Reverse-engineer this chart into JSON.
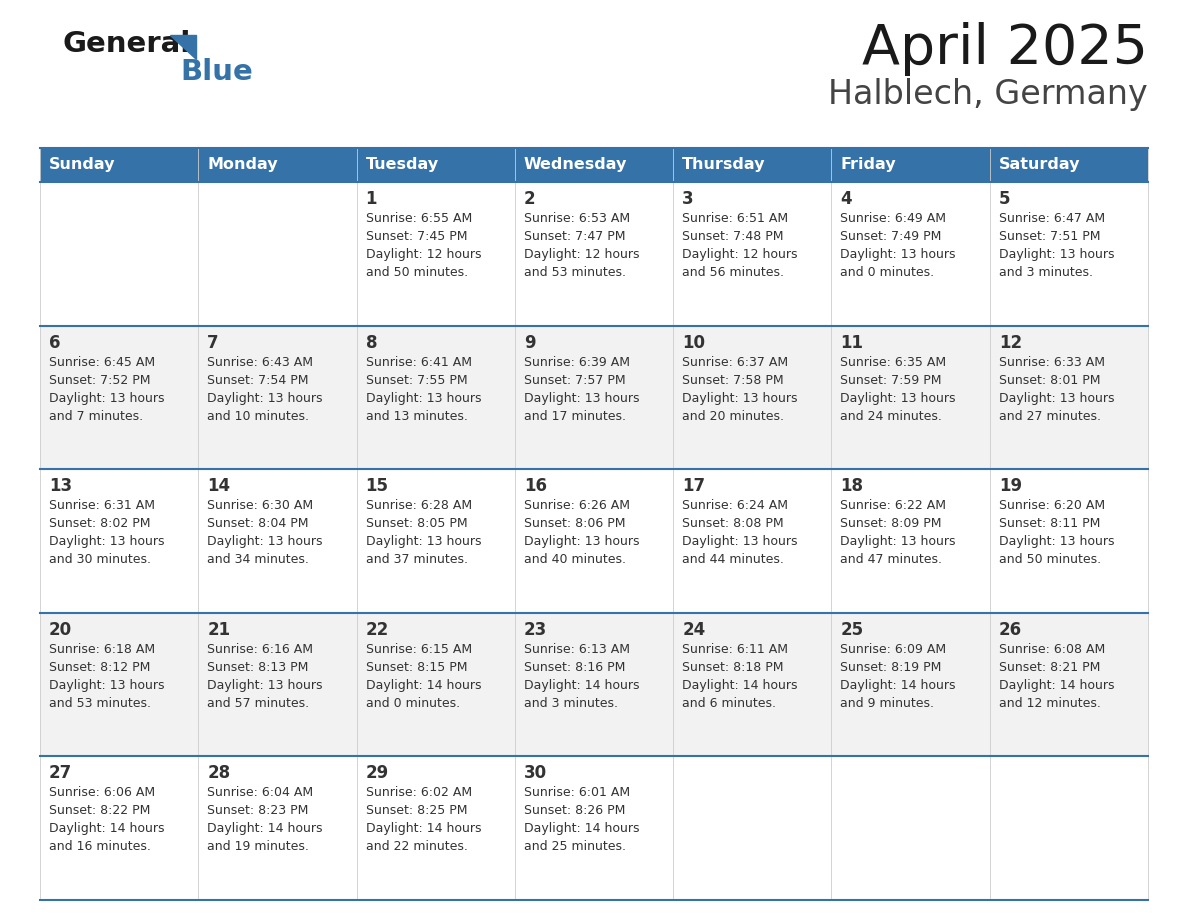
{
  "title": "April 2025",
  "subtitle": "Halblech, Germany",
  "header_color": "#3572a8",
  "header_text_color": "#ffffff",
  "day_names": [
    "Sunday",
    "Monday",
    "Tuesday",
    "Wednesday",
    "Thursday",
    "Friday",
    "Saturday"
  ],
  "bg_color": "#ffffff",
  "row_alt_color": "#f2f2f2",
  "border_color": "#3572a8",
  "cell_border_color": "#cccccc",
  "text_color": "#333333",
  "days": [
    {
      "col": 0,
      "row": 0,
      "num": "",
      "sunrise": "",
      "sunset": "",
      "daylight": ""
    },
    {
      "col": 1,
      "row": 0,
      "num": "",
      "sunrise": "",
      "sunset": "",
      "daylight": ""
    },
    {
      "col": 2,
      "row": 0,
      "num": "1",
      "sunrise": "6:55 AM",
      "sunset": "7:45 PM",
      "daylight": "12 hours\nand 50 minutes."
    },
    {
      "col": 3,
      "row": 0,
      "num": "2",
      "sunrise": "6:53 AM",
      "sunset": "7:47 PM",
      "daylight": "12 hours\nand 53 minutes."
    },
    {
      "col": 4,
      "row": 0,
      "num": "3",
      "sunrise": "6:51 AM",
      "sunset": "7:48 PM",
      "daylight": "12 hours\nand 56 minutes."
    },
    {
      "col": 5,
      "row": 0,
      "num": "4",
      "sunrise": "6:49 AM",
      "sunset": "7:49 PM",
      "daylight": "13 hours\nand 0 minutes."
    },
    {
      "col": 6,
      "row": 0,
      "num": "5",
      "sunrise": "6:47 AM",
      "sunset": "7:51 PM",
      "daylight": "13 hours\nand 3 minutes."
    },
    {
      "col": 0,
      "row": 1,
      "num": "6",
      "sunrise": "6:45 AM",
      "sunset": "7:52 PM",
      "daylight": "13 hours\nand 7 minutes."
    },
    {
      "col": 1,
      "row": 1,
      "num": "7",
      "sunrise": "6:43 AM",
      "sunset": "7:54 PM",
      "daylight": "13 hours\nand 10 minutes."
    },
    {
      "col": 2,
      "row": 1,
      "num": "8",
      "sunrise": "6:41 AM",
      "sunset": "7:55 PM",
      "daylight": "13 hours\nand 13 minutes."
    },
    {
      "col": 3,
      "row": 1,
      "num": "9",
      "sunrise": "6:39 AM",
      "sunset": "7:57 PM",
      "daylight": "13 hours\nand 17 minutes."
    },
    {
      "col": 4,
      "row": 1,
      "num": "10",
      "sunrise": "6:37 AM",
      "sunset": "7:58 PM",
      "daylight": "13 hours\nand 20 minutes."
    },
    {
      "col": 5,
      "row": 1,
      "num": "11",
      "sunrise": "6:35 AM",
      "sunset": "7:59 PM",
      "daylight": "13 hours\nand 24 minutes."
    },
    {
      "col": 6,
      "row": 1,
      "num": "12",
      "sunrise": "6:33 AM",
      "sunset": "8:01 PM",
      "daylight": "13 hours\nand 27 minutes."
    },
    {
      "col": 0,
      "row": 2,
      "num": "13",
      "sunrise": "6:31 AM",
      "sunset": "8:02 PM",
      "daylight": "13 hours\nand 30 minutes."
    },
    {
      "col": 1,
      "row": 2,
      "num": "14",
      "sunrise": "6:30 AM",
      "sunset": "8:04 PM",
      "daylight": "13 hours\nand 34 minutes."
    },
    {
      "col": 2,
      "row": 2,
      "num": "15",
      "sunrise": "6:28 AM",
      "sunset": "8:05 PM",
      "daylight": "13 hours\nand 37 minutes."
    },
    {
      "col": 3,
      "row": 2,
      "num": "16",
      "sunrise": "6:26 AM",
      "sunset": "8:06 PM",
      "daylight": "13 hours\nand 40 minutes."
    },
    {
      "col": 4,
      "row": 2,
      "num": "17",
      "sunrise": "6:24 AM",
      "sunset": "8:08 PM",
      "daylight": "13 hours\nand 44 minutes."
    },
    {
      "col": 5,
      "row": 2,
      "num": "18",
      "sunrise": "6:22 AM",
      "sunset": "8:09 PM",
      "daylight": "13 hours\nand 47 minutes."
    },
    {
      "col": 6,
      "row": 2,
      "num": "19",
      "sunrise": "6:20 AM",
      "sunset": "8:11 PM",
      "daylight": "13 hours\nand 50 minutes."
    },
    {
      "col": 0,
      "row": 3,
      "num": "20",
      "sunrise": "6:18 AM",
      "sunset": "8:12 PM",
      "daylight": "13 hours\nand 53 minutes."
    },
    {
      "col": 1,
      "row": 3,
      "num": "21",
      "sunrise": "6:16 AM",
      "sunset": "8:13 PM",
      "daylight": "13 hours\nand 57 minutes."
    },
    {
      "col": 2,
      "row": 3,
      "num": "22",
      "sunrise": "6:15 AM",
      "sunset": "8:15 PM",
      "daylight": "14 hours\nand 0 minutes."
    },
    {
      "col": 3,
      "row": 3,
      "num": "23",
      "sunrise": "6:13 AM",
      "sunset": "8:16 PM",
      "daylight": "14 hours\nand 3 minutes."
    },
    {
      "col": 4,
      "row": 3,
      "num": "24",
      "sunrise": "6:11 AM",
      "sunset": "8:18 PM",
      "daylight": "14 hours\nand 6 minutes."
    },
    {
      "col": 5,
      "row": 3,
      "num": "25",
      "sunrise": "6:09 AM",
      "sunset": "8:19 PM",
      "daylight": "14 hours\nand 9 minutes."
    },
    {
      "col": 6,
      "row": 3,
      "num": "26",
      "sunrise": "6:08 AM",
      "sunset": "8:21 PM",
      "daylight": "14 hours\nand 12 minutes."
    },
    {
      "col": 0,
      "row": 4,
      "num": "27",
      "sunrise": "6:06 AM",
      "sunset": "8:22 PM",
      "daylight": "14 hours\nand 16 minutes."
    },
    {
      "col": 1,
      "row": 4,
      "num": "28",
      "sunrise": "6:04 AM",
      "sunset": "8:23 PM",
      "daylight": "14 hours\nand 19 minutes."
    },
    {
      "col": 2,
      "row": 4,
      "num": "29",
      "sunrise": "6:02 AM",
      "sunset": "8:25 PM",
      "daylight": "14 hours\nand 22 minutes."
    },
    {
      "col": 3,
      "row": 4,
      "num": "30",
      "sunrise": "6:01 AM",
      "sunset": "8:26 PM",
      "daylight": "14 hours\nand 25 minutes."
    },
    {
      "col": 4,
      "row": 4,
      "num": "",
      "sunrise": "",
      "sunset": "",
      "daylight": ""
    },
    {
      "col": 5,
      "row": 4,
      "num": "",
      "sunrise": "",
      "sunset": "",
      "daylight": ""
    },
    {
      "col": 6,
      "row": 4,
      "num": "",
      "sunrise": "",
      "sunset": "",
      "daylight": ""
    }
  ],
  "figsize": [
    11.88,
    9.18
  ],
  "dpi": 100
}
